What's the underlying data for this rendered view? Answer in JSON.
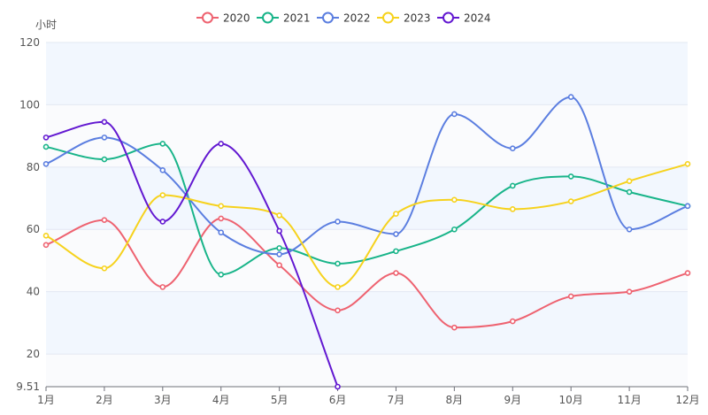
{
  "chart_data": {
    "type": "line",
    "smooth": true,
    "title": "",
    "ylabel": "小时",
    "xlabel": "",
    "categories": [
      "1月",
      "2月",
      "3月",
      "4月",
      "5月",
      "6月",
      "7月",
      "8月",
      "9月",
      "10月",
      "11月",
      "12月"
    ],
    "ylim": [
      9.51,
      120
    ],
    "ytick_values": [
      9.51,
      20,
      40,
      60,
      80,
      100,
      120
    ],
    "ytick_labels": [
      "9.51",
      "20",
      "40",
      "60",
      "80",
      "100",
      "120"
    ],
    "legend_position": "top-center",
    "grid": true,
    "series": [
      {
        "name": "2020",
        "color": "#ee6270",
        "values": [
          55,
          63,
          41.5,
          63.5,
          48.5,
          34,
          46,
          28.5,
          30.5,
          38.5,
          40,
          46
        ]
      },
      {
        "name": "2021",
        "color": "#18b489",
        "values": [
          86.5,
          82.5,
          87.5,
          45.5,
          54,
          49,
          53,
          60,
          74,
          77,
          72,
          67.5
        ]
      },
      {
        "name": "2022",
        "color": "#5b7ee0",
        "values": [
          81,
          89.5,
          79,
          59,
          52,
          62.5,
          58.5,
          97,
          86,
          102.5,
          60,
          67.5
        ]
      },
      {
        "name": "2023",
        "color": "#f6d21d",
        "values": [
          58,
          47.5,
          71,
          67.5,
          64.5,
          41.5,
          65,
          69.5,
          66.5,
          69,
          75.5,
          81
        ]
      },
      {
        "name": "2024",
        "color": "#6218d1",
        "values": [
          89.5,
          94.5,
          62.5,
          87.5,
          59.5,
          9.51,
          null,
          null,
          null,
          null,
          null,
          null
        ]
      }
    ]
  }
}
